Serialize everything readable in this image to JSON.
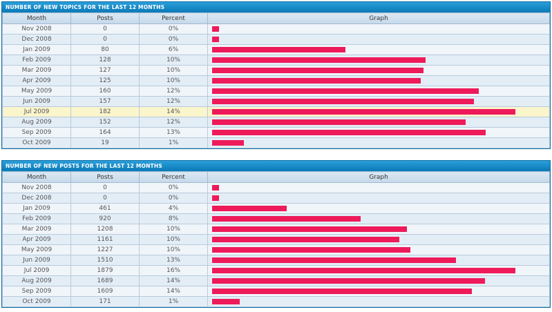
{
  "colors": {
    "bar": "#ee1a5a",
    "header": "#0d7fbd",
    "highlight": "#fbf5cc"
  },
  "columns": {
    "month": "Month",
    "posts": "Posts",
    "percent": "Percent",
    "graph": "Graph"
  },
  "topics": {
    "title": "NUMBER OF NEW TOPICS FOR THE LAST 12 MONTHS",
    "max": 182,
    "rows": [
      {
        "month": "Nov 2008",
        "posts": "0",
        "percent": "0%",
        "value": 0
      },
      {
        "month": "Dec 2008",
        "posts": "0",
        "percent": "0%",
        "value": 0
      },
      {
        "month": "Jan 2009",
        "posts": "80",
        "percent": "6%",
        "value": 80
      },
      {
        "month": "Feb 2009",
        "posts": "128",
        "percent": "10%",
        "value": 128
      },
      {
        "month": "Mar 2009",
        "posts": "127",
        "percent": "10%",
        "value": 127
      },
      {
        "month": "Apr 2009",
        "posts": "125",
        "percent": "10%",
        "value": 125
      },
      {
        "month": "May 2009",
        "posts": "160",
        "percent": "12%",
        "value": 160
      },
      {
        "month": "Jun 2009",
        "posts": "157",
        "percent": "12%",
        "value": 157
      },
      {
        "month": "Jul 2009",
        "posts": "182",
        "percent": "14%",
        "value": 182,
        "highlight": true
      },
      {
        "month": "Aug 2009",
        "posts": "152",
        "percent": "12%",
        "value": 152
      },
      {
        "month": "Sep 2009",
        "posts": "164",
        "percent": "13%",
        "value": 164
      },
      {
        "month": "Oct 2009",
        "posts": "19",
        "percent": "1%",
        "value": 19
      }
    ]
  },
  "posts": {
    "title": "NUMBER OF NEW POSTS FOR THE LAST 12 MONTHS",
    "max": 1879,
    "rows": [
      {
        "month": "Nov 2008",
        "posts": "0",
        "percent": "0%",
        "value": 0
      },
      {
        "month": "Dec 2008",
        "posts": "0",
        "percent": "0%",
        "value": 0
      },
      {
        "month": "Jan 2009",
        "posts": "461",
        "percent": "4%",
        "value": 461
      },
      {
        "month": "Feb 2009",
        "posts": "920",
        "percent": "8%",
        "value": 920
      },
      {
        "month": "Mar 2009",
        "posts": "1208",
        "percent": "10%",
        "value": 1208
      },
      {
        "month": "Apr 2009",
        "posts": "1161",
        "percent": "10%",
        "value": 1161
      },
      {
        "month": "May 2009",
        "posts": "1227",
        "percent": "10%",
        "value": 1227
      },
      {
        "month": "Jun 2009",
        "posts": "1510",
        "percent": "13%",
        "value": 1510
      },
      {
        "month": "Jul 2009",
        "posts": "1879",
        "percent": "16%",
        "value": 1879
      },
      {
        "month": "Aug 2009",
        "posts": "1689",
        "percent": "14%",
        "value": 1689
      },
      {
        "month": "Sep 2009",
        "posts": "1609",
        "percent": "14%",
        "value": 1609
      },
      {
        "month": "Oct 2009",
        "posts": "171",
        "percent": "1%",
        "value": 171
      }
    ]
  }
}
